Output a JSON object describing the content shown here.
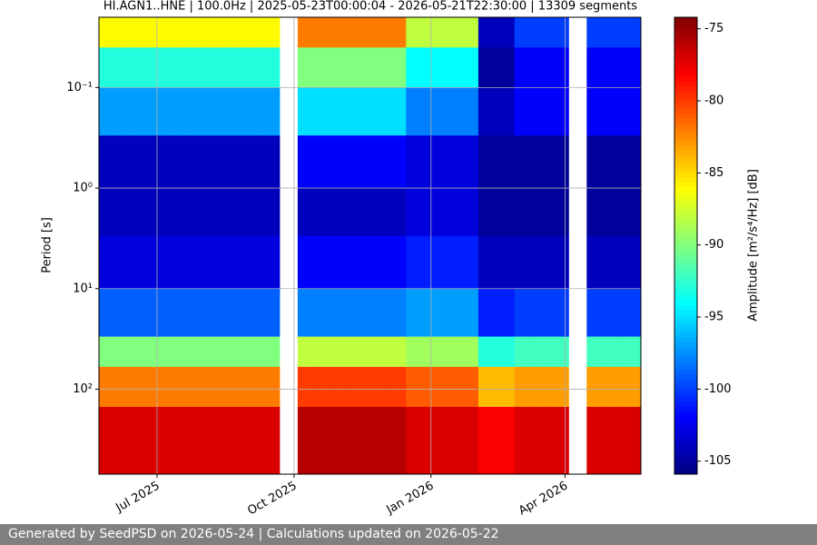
{
  "chart_data": {
    "type": "heatmap",
    "title": "HI.AGN1..HNE | 100.0Hz | 2025-05-23T00:00:04 - 2026-05-21T22:30:00 | 13309 segments",
    "ylabel": "Period [s]",
    "zlabel": "Amplitude [m²/s⁴/Hz] [dB]",
    "xlim": [
      "2025-05-23T00:00:04",
      "2026-05-21T22:30:00"
    ],
    "xticks": [
      {
        "value": "2025-07",
        "label": "Jul 2025"
      },
      {
        "value": "2025-10",
        "label": "Oct 2025"
      },
      {
        "value": "2026-01",
        "label": "Jan 2026"
      },
      {
        "value": "2026-04",
        "label": "Apr 2026"
      }
    ],
    "ylim": [
      0.02,
      700
    ],
    "y_log": true,
    "y_inverted": true,
    "yticks": [
      {
        "value": 0.1,
        "label": "10⁻¹"
      },
      {
        "value": 1,
        "label": "10⁰"
      },
      {
        "value": 10,
        "label": "10¹"
      },
      {
        "value": 100,
        "label": "10²"
      }
    ],
    "y_edges": [
      0.02,
      0.04,
      0.1,
      0.3,
      1,
      3,
      10,
      30,
      60,
      150,
      700
    ],
    "zlim": [
      -105.9,
      -74.2
    ],
    "zticks": [
      -75,
      -80,
      -85,
      -90,
      -95,
      -100,
      -105
    ],
    "colormap": "jet",
    "grid": true,
    "z": [
      [
        -86,
        -86,
        -86,
        -86,
        -86,
        -86,
        -86,
        -86,
        -86,
        -86,
        null,
        -82,
        -82,
        -82,
        -82,
        -82,
        -82,
        -88,
        -88,
        -88,
        -88,
        -104,
        -104,
        -100,
        -100,
        -100,
        null,
        -100,
        -100,
        -100
      ],
      [
        -93,
        -93,
        -93,
        -93,
        -93,
        -93,
        -93,
        -93,
        -93,
        -93,
        null,
        -90,
        -90,
        -90,
        -90,
        -90,
        -90,
        -94,
        -94,
        -94,
        -94,
        -105,
        -105,
        -102,
        -102,
        -102,
        null,
        -102,
        -102,
        -102
      ],
      [
        -97,
        -97,
        -97,
        -97,
        -97,
        -97,
        -97,
        -97,
        -97,
        -97,
        null,
        -95,
        -95,
        -95,
        -95,
        -95,
        -95,
        -98,
        -98,
        -98,
        -98,
        -104,
        -104,
        -102,
        -102,
        -102,
        null,
        -102,
        -102,
        -102
      ],
      [
        -104,
        -104,
        -104,
        -104,
        -104,
        -104,
        -104,
        -104,
        -104,
        -104,
        null,
        -102,
        -102,
        -102,
        -102,
        -102,
        -102,
        -103,
        -103,
        -103,
        -103,
        -105,
        -105,
        -105,
        -105,
        -105,
        null,
        -105,
        -105,
        -105
      ],
      [
        -104,
        -104,
        -104,
        -104,
        -104,
        -104,
        -104,
        -104,
        -104,
        -104,
        null,
        -104,
        -104,
        -104,
        -104,
        -104,
        -104,
        -103,
        -103,
        -103,
        -103,
        -105,
        -105,
        -105,
        -105,
        -105,
        null,
        -105,
        -105,
        -105
      ],
      [
        -103,
        -103,
        -103,
        -103,
        -103,
        -103,
        -103,
        -103,
        -103,
        -103,
        null,
        -102,
        -102,
        -102,
        -102,
        -102,
        -102,
        -101,
        -101,
        -101,
        -101,
        -104,
        -104,
        -104,
        -104,
        -104,
        null,
        -104,
        -104,
        -104
      ],
      [
        -99,
        -99,
        -99,
        -99,
        -99,
        -99,
        -99,
        -99,
        -99,
        -99,
        null,
        -98,
        -98,
        -98,
        -98,
        -98,
        -98,
        -97,
        -97,
        -97,
        -97,
        -101,
        -101,
        -100,
        -100,
        -100,
        null,
        -100,
        -100,
        -100
      ],
      [
        -90,
        -90,
        -90,
        -90,
        -90,
        -90,
        -90,
        -90,
        -90,
        -90,
        null,
        -88,
        -88,
        -88,
        -88,
        -88,
        -88,
        -89,
        -89,
        -89,
        -89,
        -93,
        -93,
        -92,
        -92,
        -92,
        null,
        -92,
        -92,
        -92
      ],
      [
        -82,
        -82,
        -82,
        -82,
        -82,
        -82,
        -82,
        -82,
        -82,
        -82,
        null,
        -80,
        -80,
        -80,
        -80,
        -80,
        -80,
        -81,
        -81,
        -81,
        -81,
        -84,
        -84,
        -83,
        -83,
        -83,
        null,
        -83,
        -83,
        -83
      ],
      [
        -77,
        -77,
        -77,
        -77,
        -77,
        -77,
        -77,
        -77,
        -77,
        -77,
        null,
        -76,
        -76,
        -76,
        -76,
        -76,
        -76,
        -77,
        -77,
        -77,
        -77,
        -78,
        -78,
        -77,
        -77,
        -77,
        null,
        -77,
        -77,
        -77
      ]
    ]
  },
  "footer": {
    "text": "Generated by SeedPSD on 2026-05-24 | Calculations updated on 2026-05-22"
  }
}
